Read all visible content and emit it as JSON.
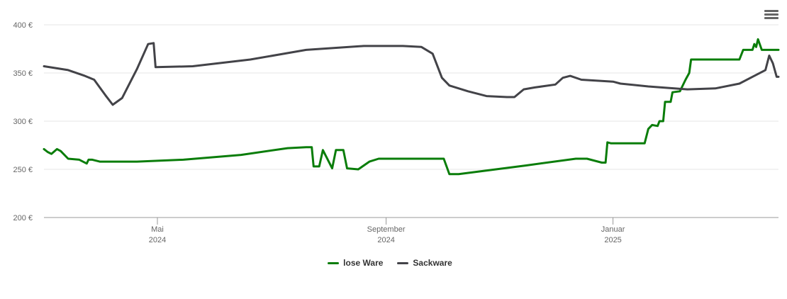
{
  "chart_data": {
    "type": "line",
    "y_ticks": [
      "400 €",
      "350 €",
      "300 €",
      "250 €",
      "200 €"
    ],
    "y_tick_values": [
      400,
      350,
      300,
      250,
      200
    ],
    "ylim": [
      200,
      400
    ],
    "x_range": [
      "2024-03-01",
      "2025-03-31"
    ],
    "x_ticks": [
      {
        "date": "2024-05-01",
        "month": "Mai",
        "year": "2024"
      },
      {
        "date": "2024-09-01",
        "month": "September",
        "year": "2024"
      },
      {
        "date": "2025-01-01",
        "month": "Januar",
        "year": "2025"
      }
    ],
    "grid": true,
    "legend_position": "bottom-center",
    "series": [
      {
        "name": "lose Ware",
        "color": "#0a7d0a",
        "points": [
          [
            "2024-03-01",
            271
          ],
          [
            "2024-03-03",
            268
          ],
          [
            "2024-03-05",
            266
          ],
          [
            "2024-03-08",
            271
          ],
          [
            "2024-03-10",
            269
          ],
          [
            "2024-03-14",
            261
          ],
          [
            "2024-03-20",
            260
          ],
          [
            "2024-03-24",
            256
          ],
          [
            "2024-03-25",
            260
          ],
          [
            "2024-03-27",
            260
          ],
          [
            "2024-03-31",
            258
          ],
          [
            "2024-04-20",
            258
          ],
          [
            "2024-05-15",
            260
          ],
          [
            "2024-06-15",
            265
          ],
          [
            "2024-07-10",
            272
          ],
          [
            "2024-07-20",
            273
          ],
          [
            "2024-07-23",
            273
          ],
          [
            "2024-07-24",
            253
          ],
          [
            "2024-07-27",
            253
          ],
          [
            "2024-07-29",
            270
          ],
          [
            "2024-08-03",
            251
          ],
          [
            "2024-08-05",
            270
          ],
          [
            "2024-08-09",
            270
          ],
          [
            "2024-08-11",
            251
          ],
          [
            "2024-08-17",
            250
          ],
          [
            "2024-08-23",
            258
          ],
          [
            "2024-08-28",
            261
          ],
          [
            "2024-10-02",
            261
          ],
          [
            "2024-10-05",
            245
          ],
          [
            "2024-10-10",
            245
          ],
          [
            "2024-11-15",
            254
          ],
          [
            "2024-12-12",
            261
          ],
          [
            "2024-12-18",
            261
          ],
          [
            "2024-12-26",
            257
          ],
          [
            "2024-12-28",
            257
          ],
          [
            "2024-12-29",
            278
          ],
          [
            "2024-12-31",
            277
          ],
          [
            "2025-01-18",
            277
          ],
          [
            "2025-01-20",
            292
          ],
          [
            "2025-01-22",
            296
          ],
          [
            "2025-01-25",
            295
          ],
          [
            "2025-01-26",
            300
          ],
          [
            "2025-01-28",
            300
          ],
          [
            "2025-01-29",
            320
          ],
          [
            "2025-02-01",
            320
          ],
          [
            "2025-02-02",
            330
          ],
          [
            "2025-02-06",
            331
          ],
          [
            "2025-02-09",
            343
          ],
          [
            "2025-02-11",
            350
          ],
          [
            "2025-02-12",
            364
          ],
          [
            "2025-03-10",
            364
          ],
          [
            "2025-03-12",
            374
          ],
          [
            "2025-03-17",
            374
          ],
          [
            "2025-03-18",
            380
          ],
          [
            "2025-03-19",
            377
          ],
          [
            "2025-03-20",
            385
          ],
          [
            "2025-03-22",
            374
          ],
          [
            "2025-03-31",
            374
          ]
        ]
      },
      {
        "name": "Sackware",
        "color": "#434348",
        "points": [
          [
            "2024-03-01",
            357
          ],
          [
            "2024-03-14",
            353
          ],
          [
            "2024-03-23",
            347
          ],
          [
            "2024-03-28",
            343
          ],
          [
            "2024-04-03",
            327
          ],
          [
            "2024-04-07",
            317
          ],
          [
            "2024-04-12",
            324
          ],
          [
            "2024-04-20",
            354
          ],
          [
            "2024-04-26",
            380
          ],
          [
            "2024-04-29",
            381
          ],
          [
            "2024-04-30",
            356
          ],
          [
            "2024-05-20",
            357
          ],
          [
            "2024-06-20",
            364
          ],
          [
            "2024-07-20",
            374
          ],
          [
            "2024-08-20",
            378
          ],
          [
            "2024-09-10",
            378
          ],
          [
            "2024-09-20",
            377
          ],
          [
            "2024-09-26",
            370
          ],
          [
            "2024-10-01",
            345
          ],
          [
            "2024-10-05",
            337
          ],
          [
            "2024-10-15",
            331
          ],
          [
            "2024-10-25",
            326
          ],
          [
            "2024-11-05",
            325
          ],
          [
            "2024-11-09",
            325
          ],
          [
            "2024-11-14",
            333
          ],
          [
            "2024-11-20",
            335
          ],
          [
            "2024-12-01",
            338
          ],
          [
            "2024-12-05",
            345
          ],
          [
            "2024-12-09",
            347
          ],
          [
            "2024-12-15",
            343
          ],
          [
            "2025-01-01",
            341
          ],
          [
            "2025-01-05",
            339
          ],
          [
            "2025-01-20",
            336
          ],
          [
            "2025-02-10",
            333
          ],
          [
            "2025-02-25",
            334
          ],
          [
            "2025-03-10",
            339
          ],
          [
            "2025-03-18",
            347
          ],
          [
            "2025-03-24",
            353
          ],
          [
            "2025-03-26",
            368
          ],
          [
            "2025-03-28",
            360
          ],
          [
            "2025-03-30",
            346
          ],
          [
            "2025-03-31",
            346
          ]
        ]
      }
    ]
  },
  "legend": {
    "items": [
      {
        "label": "lose Ware",
        "color": "#0a7d0a"
      },
      {
        "label": "Sackware",
        "color": "#434348"
      }
    ]
  },
  "menu": {
    "icon": "hamburger-menu-icon"
  }
}
